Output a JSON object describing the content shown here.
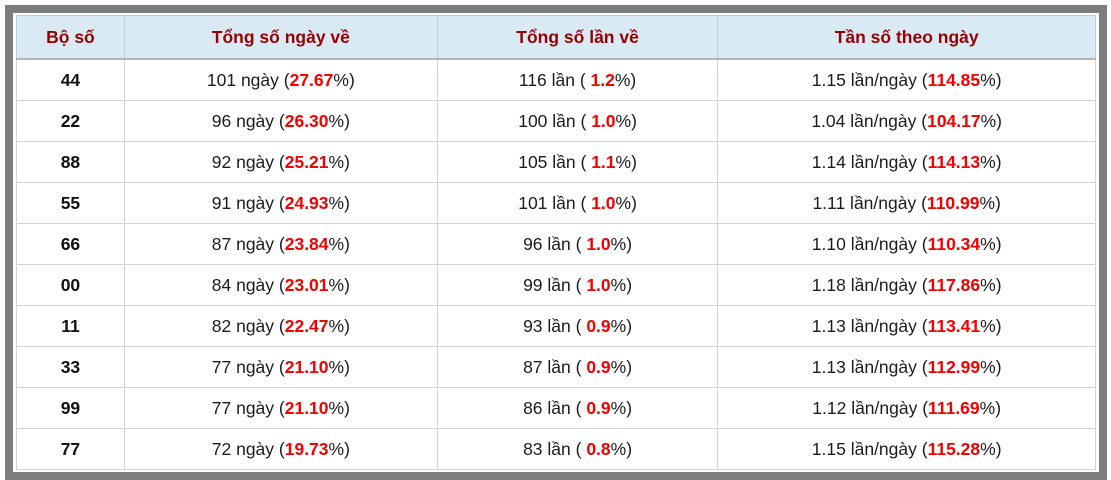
{
  "colors": {
    "frame_border": "#7d7d7d",
    "header_bg": "#d9eaf4",
    "header_text": "#990000",
    "highlight_red": "#f40000",
    "body_text": "#1c1c1c",
    "grid_line": "#d3d3d3"
  },
  "table": {
    "columns": {
      "pair": "Bộ số",
      "days": "Tổng số ngày về",
      "times": "Tổng số lần về",
      "freq": "Tần số theo ngày"
    },
    "rows": [
      {
        "pair": "44",
        "days": {
          "pre": "101 ngày (",
          "red": "27.67",
          "post": "%)"
        },
        "times": {
          "pre": "116 lần ( ",
          "red": "1.2",
          "post": "%)"
        },
        "freq": {
          "pre": "1.15 lần/ngày (",
          "red": "114.85",
          "post": "%)"
        }
      },
      {
        "pair": "22",
        "days": {
          "pre": "96 ngày (",
          "red": "26.30",
          "post": "%)"
        },
        "times": {
          "pre": "100 lần ( ",
          "red": "1.0",
          "post": "%)"
        },
        "freq": {
          "pre": "1.04 lần/ngày (",
          "red": "104.17",
          "post": "%)"
        }
      },
      {
        "pair": "88",
        "days": {
          "pre": "92 ngày (",
          "red": "25.21",
          "post": "%)"
        },
        "times": {
          "pre": "105 lần ( ",
          "red": "1.1",
          "post": "%)"
        },
        "freq": {
          "pre": "1.14 lần/ngày (",
          "red": "114.13",
          "post": "%)"
        }
      },
      {
        "pair": "55",
        "days": {
          "pre": "91 ngày (",
          "red": "24.93",
          "post": "%)"
        },
        "times": {
          "pre": "101 lần ( ",
          "red": "1.0",
          "post": "%)"
        },
        "freq": {
          "pre": "1.11 lần/ngày (",
          "red": "110.99",
          "post": "%)"
        }
      },
      {
        "pair": "66",
        "days": {
          "pre": "87 ngày (",
          "red": "23.84",
          "post": "%)"
        },
        "times": {
          "pre": "96 lần ( ",
          "red": "1.0",
          "post": "%)"
        },
        "freq": {
          "pre": "1.10 lần/ngày (",
          "red": "110.34",
          "post": "%)"
        }
      },
      {
        "pair": "00",
        "days": {
          "pre": "84 ngày (",
          "red": "23.01",
          "post": "%)"
        },
        "times": {
          "pre": "99 lần ( ",
          "red": "1.0",
          "post": "%)"
        },
        "freq": {
          "pre": "1.18 lần/ngày (",
          "red": "117.86",
          "post": "%)"
        }
      },
      {
        "pair": "11",
        "days": {
          "pre": "82 ngày (",
          "red": "22.47",
          "post": "%)"
        },
        "times": {
          "pre": "93 lần ( ",
          "red": "0.9",
          "post": "%)"
        },
        "freq": {
          "pre": "1.13 lần/ngày (",
          "red": "113.41",
          "post": "%)"
        }
      },
      {
        "pair": "33",
        "days": {
          "pre": "77 ngày (",
          "red": "21.10",
          "post": "%)"
        },
        "times": {
          "pre": "87 lần ( ",
          "red": "0.9",
          "post": "%)"
        },
        "freq": {
          "pre": "1.13 lần/ngày (",
          "red": "112.99",
          "post": "%)"
        }
      },
      {
        "pair": "99",
        "days": {
          "pre": "77 ngày (",
          "red": "21.10",
          "post": "%)"
        },
        "times": {
          "pre": "86 lần ( ",
          "red": "0.9",
          "post": "%)"
        },
        "freq": {
          "pre": "1.12 lần/ngày (",
          "red": "111.69",
          "post": "%)"
        }
      },
      {
        "pair": "77",
        "days": {
          "pre": "72 ngày (",
          "red": "19.73",
          "post": "%)"
        },
        "times": {
          "pre": "83 lần ( ",
          "red": "0.8",
          "post": "%)"
        },
        "freq": {
          "pre": "1.15 lần/ngày (",
          "red": "115.28",
          "post": "%)"
        }
      }
    ]
  }
}
